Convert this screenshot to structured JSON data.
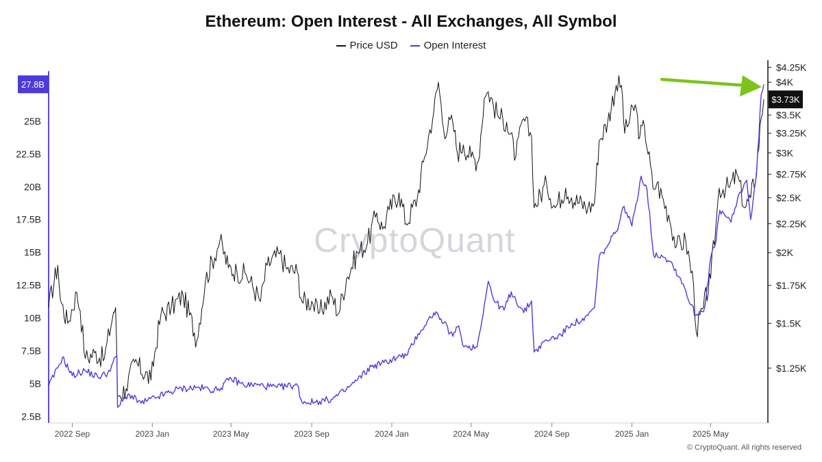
{
  "title": "Ethereum: Open Interest - All Exchanges, All Symbol",
  "watermark": "CryptoQuant",
  "copyright": "© CryptoQuant. All rights reserved",
  "colors": {
    "price": "#111111",
    "open_interest": "#4b3bdc",
    "arrow": "#7cc41a",
    "badge_dark": "#111111"
  },
  "chart_data": {
    "type": "line",
    "title": "Ethereum: Open Interest - All Exchanges, All Symbol",
    "legend": [
      "Price USD",
      "Open Interest"
    ],
    "legend_position": "top-center",
    "grid": false,
    "x_range": [
      "2022-07-27",
      "2025-07-22"
    ],
    "x_ticks": [
      {
        "date": "2022-09-01",
        "label": "2022 Sep"
      },
      {
        "date": "2023-01-01",
        "label": "2023 Jan"
      },
      {
        "date": "2023-05-01",
        "label": "2023 May"
      },
      {
        "date": "2023-09-01",
        "label": "2023 Sep"
      },
      {
        "date": "2024-01-01",
        "label": "2024 Jan"
      },
      {
        "date": "2024-05-01",
        "label": "2024 May"
      },
      {
        "date": "2024-09-01",
        "label": "2024 Sep"
      },
      {
        "date": "2025-01-01",
        "label": "2025 Jan"
      },
      {
        "date": "2025-05-01",
        "label": "2025 May"
      }
    ],
    "y_left": {
      "unit": "B",
      "ylim": [
        2,
        28.8
      ],
      "ticks": [
        2.5,
        5,
        7.5,
        10,
        12.5,
        15,
        17.5,
        20,
        22.5,
        25
      ],
      "tick_labels": [
        "2.5B",
        "5B",
        "7.5B",
        "10B",
        "12.5B",
        "15B",
        "17.5B",
        "20B",
        "22.5B",
        "25B"
      ],
      "current_label": "27.8B",
      "current_value": 27.8
    },
    "y_right": {
      "scale": "log",
      "ylim": [
        1000,
        4350
      ],
      "ticks": [
        1250,
        1500,
        1750,
        2000,
        2250,
        2500,
        2750,
        3000,
        3250,
        3500,
        4000,
        4250
      ],
      "tick_labels": [
        "$1.25K",
        "$1.5K",
        "$1.75K",
        "$2K",
        "$2.25K",
        "$2.5K",
        "$2.75K",
        "$3K",
        "$3.25K",
        "$3.5K",
        "$4K",
        "$4.25K"
      ],
      "current_label": "$3.73K",
      "current_value": 3730
    },
    "series": [
      {
        "name": "Price USD",
        "axis": "right",
        "x": [
          "2022-07-27",
          "2022-08-10",
          "2022-08-14",
          "2022-08-25",
          "2022-09-08",
          "2022-09-13",
          "2022-09-21",
          "2022-10-05",
          "2022-10-20",
          "2022-11-03",
          "2022-11-06",
          "2022-11-09",
          "2022-11-22",
          "2022-12-05",
          "2022-12-30",
          "2023-01-14",
          "2023-01-30",
          "2023-02-17",
          "2023-03-10",
          "2023-03-23",
          "2023-04-14",
          "2023-04-27",
          "2023-05-10",
          "2023-05-24",
          "2023-06-15",
          "2023-06-25",
          "2023-07-14",
          "2023-07-25",
          "2023-08-10",
          "2023-08-17",
          "2023-09-01",
          "2023-09-11",
          "2023-10-01",
          "2023-10-12",
          "2023-10-24",
          "2023-11-10",
          "2023-11-25",
          "2023-12-09",
          "2023-12-18",
          "2023-12-28",
          "2024-01-12",
          "2024-01-23",
          "2024-02-09",
          "2024-02-20",
          "2024-03-05",
          "2024-03-12",
          "2024-03-20",
          "2024-04-03",
          "2024-04-10",
          "2024-04-19",
          "2024-05-01",
          "2024-05-12",
          "2024-05-21",
          "2024-05-27",
          "2024-06-10",
          "2024-06-24",
          "2024-07-08",
          "2024-07-20",
          "2024-08-01",
          "2024-08-05",
          "2024-08-24",
          "2024-09-06",
          "2024-09-22",
          "2024-10-01",
          "2024-10-26",
          "2024-11-05",
          "2024-11-12",
          "2024-11-25",
          "2024-12-08",
          "2024-12-16",
          "2024-12-21",
          "2025-01-06",
          "2025-01-13",
          "2025-01-20",
          "2025-02-02",
          "2025-02-08",
          "2025-02-26",
          "2025-03-10",
          "2025-03-24",
          "2025-04-05",
          "2025-04-09",
          "2025-04-20",
          "2025-05-01",
          "2025-05-09",
          "2025-05-14",
          "2025-05-30",
          "2025-06-10",
          "2025-06-22",
          "2025-07-01",
          "2025-07-10",
          "2025-07-17",
          "2025-07-21"
        ],
        "values": [
          1600,
          1900,
          1650,
          1500,
          1700,
          1580,
          1300,
          1330,
          1300,
          1570,
          1600,
          1120,
          1150,
          1280,
          1190,
          1550,
          1600,
          1680,
          1400,
          1780,
          2100,
          1880,
          1850,
          1830,
          1640,
          1900,
          1990,
          1870,
          1850,
          1640,
          1640,
          1560,
          1680,
          1560,
          1800,
          2000,
          2080,
          2350,
          2200,
          2380,
          2550,
          2250,
          2500,
          2950,
          3550,
          4000,
          3300,
          3400,
          3000,
          3100,
          2950,
          2900,
          3750,
          3850,
          3500,
          3400,
          2950,
          3450,
          3200,
          2400,
          2650,
          2400,
          2600,
          2500,
          2400,
          2450,
          3150,
          3400,
          3950,
          3950,
          3250,
          3650,
          3200,
          3350,
          2600,
          2650,
          2330,
          2050,
          2100,
          1750,
          1450,
          1600,
          1800,
          2230,
          2600,
          2610,
          2750,
          2400,
          2500,
          2800,
          3450,
          3730
        ]
      },
      {
        "name": "Open Interest",
        "axis": "left",
        "x": [
          "2022-07-27",
          "2022-08-10",
          "2022-08-17",
          "2022-09-01",
          "2022-09-20",
          "2022-10-10",
          "2022-10-25",
          "2022-11-08",
          "2022-11-09",
          "2022-11-25",
          "2022-12-15",
          "2023-01-10",
          "2023-02-10",
          "2023-03-10",
          "2023-04-10",
          "2023-05-01",
          "2023-05-20",
          "2023-06-10",
          "2023-07-10",
          "2023-08-10",
          "2023-08-17",
          "2023-09-05",
          "2023-10-01",
          "2023-10-20",
          "2023-11-10",
          "2023-12-01",
          "2023-12-20",
          "2024-01-10",
          "2024-01-25",
          "2024-02-10",
          "2024-02-20",
          "2024-03-05",
          "2024-03-12",
          "2024-03-20",
          "2024-04-03",
          "2024-04-12",
          "2024-04-20",
          "2024-05-10",
          "2024-05-21",
          "2024-05-27",
          "2024-06-05",
          "2024-06-20",
          "2024-07-01",
          "2024-07-20",
          "2024-08-01",
          "2024-08-05",
          "2024-08-24",
          "2024-09-15",
          "2024-10-01",
          "2024-10-20",
          "2024-11-05",
          "2024-11-12",
          "2024-11-25",
          "2024-12-08",
          "2024-12-20",
          "2025-01-01",
          "2025-01-15",
          "2025-01-24",
          "2025-02-03",
          "2025-02-15",
          "2025-03-01",
          "2025-03-20",
          "2025-04-01",
          "2025-04-08",
          "2025-04-22",
          "2025-05-01",
          "2025-05-09",
          "2025-05-15",
          "2025-06-01",
          "2025-06-15",
          "2025-06-25",
          "2025-07-01",
          "2025-07-10",
          "2025-07-17",
          "2025-07-21"
        ],
        "values": [
          4.8,
          6.2,
          7.0,
          5.6,
          6.0,
          5.5,
          5.8,
          7.1,
          3.2,
          4.2,
          3.5,
          4.0,
          4.6,
          4.7,
          4.5,
          5.4,
          4.9,
          4.9,
          4.7,
          4.9,
          3.6,
          3.6,
          3.8,
          4.4,
          5.3,
          6.3,
          6.6,
          7.0,
          7.2,
          8.8,
          9.4,
          10.4,
          10.2,
          9.6,
          8.6,
          9.4,
          7.8,
          7.8,
          11.0,
          12.8,
          11.3,
          10.6,
          12.0,
          10.4,
          11.3,
          7.4,
          8.3,
          8.7,
          9.6,
          9.8,
          10.8,
          14.6,
          15.5,
          16.6,
          18.5,
          17.0,
          20.8,
          19.8,
          14.8,
          14.8,
          14.3,
          12.6,
          11.0,
          10.2,
          10.8,
          14.6,
          15.8,
          18.2,
          17.3,
          19.6,
          20.5,
          17.5,
          21.0,
          27.0,
          27.8
        ]
      }
    ]
  }
}
